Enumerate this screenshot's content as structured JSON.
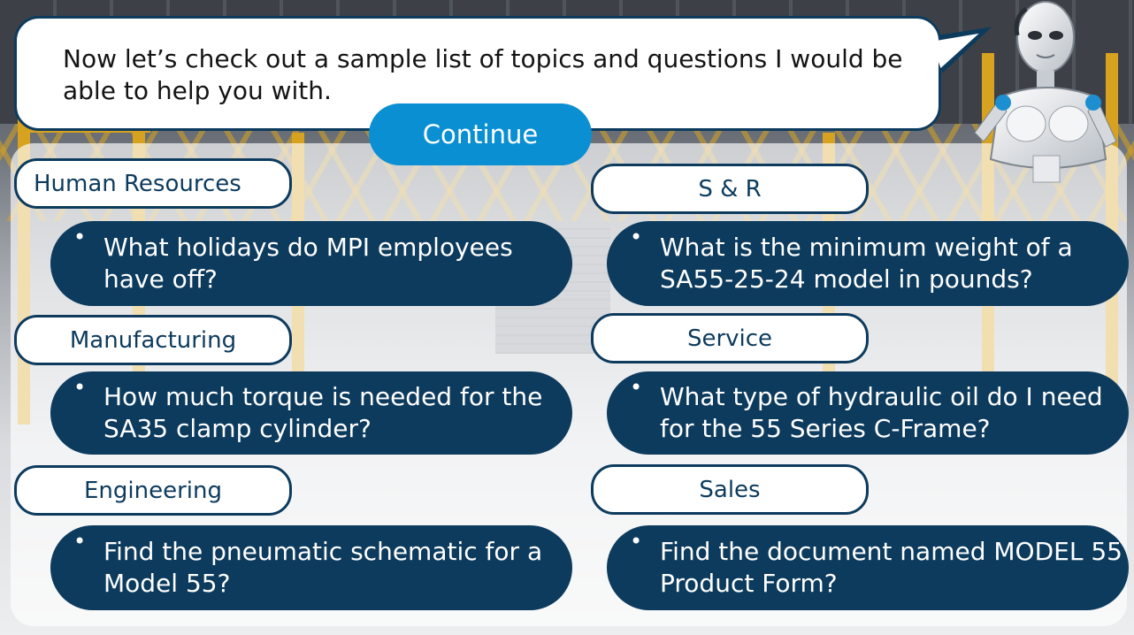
{
  "bubble": {
    "text": "Now let’s check out a sample list of topics and questions I would be able to help you with."
  },
  "continue_label": "Continue",
  "bullet": "•",
  "topics": [
    {
      "category": "Human Resources",
      "question": "What holidays do MPI employees have off?"
    },
    {
      "category": "S & R",
      "question": "What is the minimum weight of a SA55-25-24 model in pounds?"
    },
    {
      "category": "Manufacturing",
      "question": "How much torque is needed for the SA35 clamp cylinder?"
    },
    {
      "category": "Service",
      "question": "What type of hydraulic oil do I need for the 55 Series C-Frame?"
    },
    {
      "category": "Engineering",
      "question": "Find the pneumatic schematic for a Model 55?"
    },
    {
      "category": "Sales",
      "question": "Find the document named MODEL 55 Product Form?"
    }
  ],
  "colors": {
    "navy": "#0d3b5e",
    "accent": "#0b8fd3"
  }
}
